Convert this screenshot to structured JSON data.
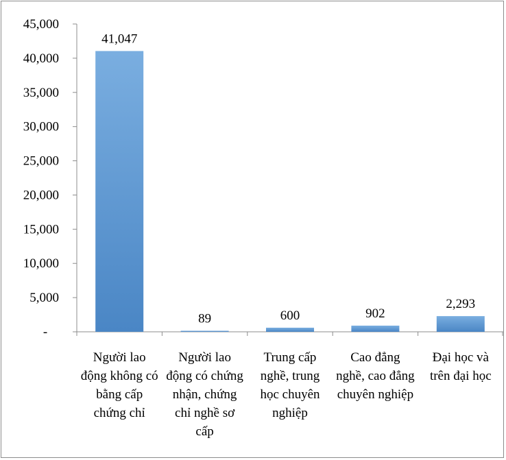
{
  "chart_data": {
    "type": "bar",
    "title": "",
    "xlabel": "",
    "ylabel": "",
    "ylim": [
      0,
      45000
    ],
    "y_ticks": [
      {
        "value": 0,
        "label": "-"
      },
      {
        "value": 5000,
        "label": "5,000"
      },
      {
        "value": 10000,
        "label": "10,000"
      },
      {
        "value": 15000,
        "label": "15,000"
      },
      {
        "value": 20000,
        "label": "20,000"
      },
      {
        "value": 25000,
        "label": "25,000"
      },
      {
        "value": 30000,
        "label": "30,000"
      },
      {
        "value": 35000,
        "label": "35,000"
      },
      {
        "value": 40000,
        "label": "40,000"
      },
      {
        "value": 45000,
        "label": "45,000"
      }
    ],
    "grid": false,
    "legend": "none",
    "bar_color": "#5b9bd5",
    "bar_color_light": "#7aaee0",
    "bar_color_dark": "#4a86c5",
    "categories": [
      [
        "Người lao",
        "động không có",
        "bằng cấp",
        "chứng chỉ"
      ],
      [
        "Người lao",
        "động có chứng",
        "nhận, chứng",
        "chỉ nghề sơ",
        "cấp"
      ],
      [
        "Trung cấp",
        "nghề, trung",
        "học chuyên",
        "nghiệp"
      ],
      [
        "Cao đẳng",
        "nghề, cao đẳng",
        "chuyên nghiệp"
      ],
      [
        "Đại học và",
        "trên đại học"
      ]
    ],
    "values": [
      41047,
      89,
      600,
      902,
      2293
    ],
    "value_labels": [
      "41,047",
      "89",
      "600",
      "902",
      "2,293"
    ]
  }
}
